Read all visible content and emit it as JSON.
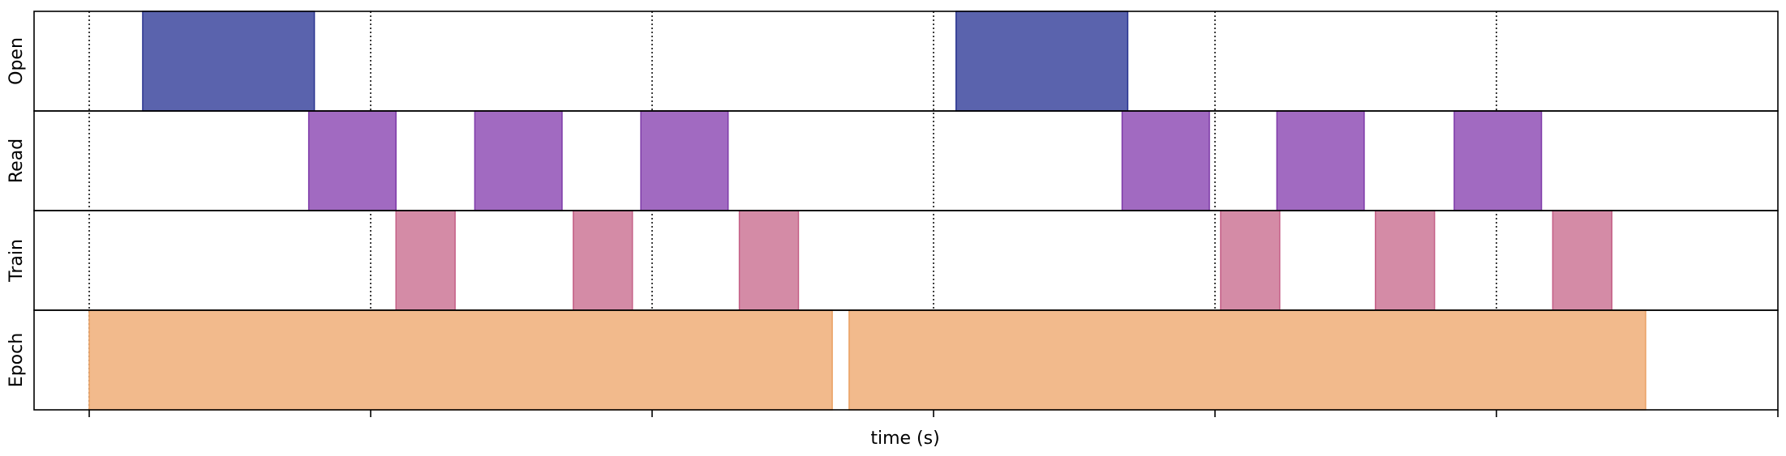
{
  "chart_data": {
    "type": "timeline",
    "xlabel": "time (s)",
    "rows": [
      {
        "label": "Open",
        "color": "#5a63ad",
        "edge": "#2b3590",
        "intervals": [
          [
            0.19,
            0.8
          ],
          [
            3.08,
            3.69
          ]
        ]
      },
      {
        "label": "Read",
        "color": "#a16ac1",
        "edge": "#7d3aa8",
        "intervals": [
          [
            0.78,
            1.09
          ],
          [
            1.37,
            1.68
          ],
          [
            1.96,
            2.27
          ],
          [
            3.67,
            3.98
          ],
          [
            4.22,
            4.53
          ],
          [
            4.85,
            5.16
          ]
        ]
      },
      {
        "label": "Train",
        "color": "#d48ba6",
        "edge": "#c45f86",
        "intervals": [
          [
            1.09,
            1.3
          ],
          [
            1.72,
            1.93
          ],
          [
            2.31,
            2.52
          ],
          [
            4.02,
            4.23
          ],
          [
            4.57,
            4.78
          ],
          [
            5.2,
            5.41
          ]
        ]
      },
      {
        "label": "Epoch",
        "color": "#f2ba8c",
        "edge": "#eaa062",
        "intervals": [
          [
            0.0,
            2.64
          ],
          [
            2.7,
            5.53
          ]
        ]
      }
    ],
    "xlim": [
      -0.2,
      6.0
    ],
    "xticks": [
      0,
      1,
      2,
      3,
      4,
      5,
      6
    ],
    "grid": "vertical dotted at x ticks",
    "tick_labels_visible": false
  }
}
